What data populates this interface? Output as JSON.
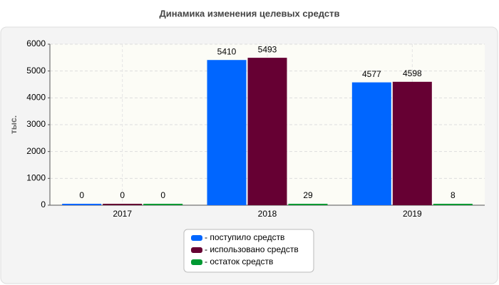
{
  "chart_data": {
    "type": "bar",
    "title": "Динамика изменения целевых средств",
    "y_label": "тыс.",
    "categories": [
      "2017",
      "2018",
      "2019"
    ],
    "series": [
      {
        "name": "- поступило средств",
        "color": "#0066ff",
        "values": [
          0,
          5410,
          4577
        ]
      },
      {
        "name": "- использовано средств",
        "color": "#660033",
        "values": [
          0,
          5493,
          4598
        ]
      },
      {
        "name": "- остаток средств",
        "color": "#009933",
        "values": [
          0,
          29,
          8
        ]
      }
    ],
    "ylim": [
      0,
      6000
    ],
    "yticks": [
      0,
      1000,
      2000,
      3000,
      4000,
      5000,
      6000
    ],
    "grid": true,
    "legend": "bottom"
  }
}
